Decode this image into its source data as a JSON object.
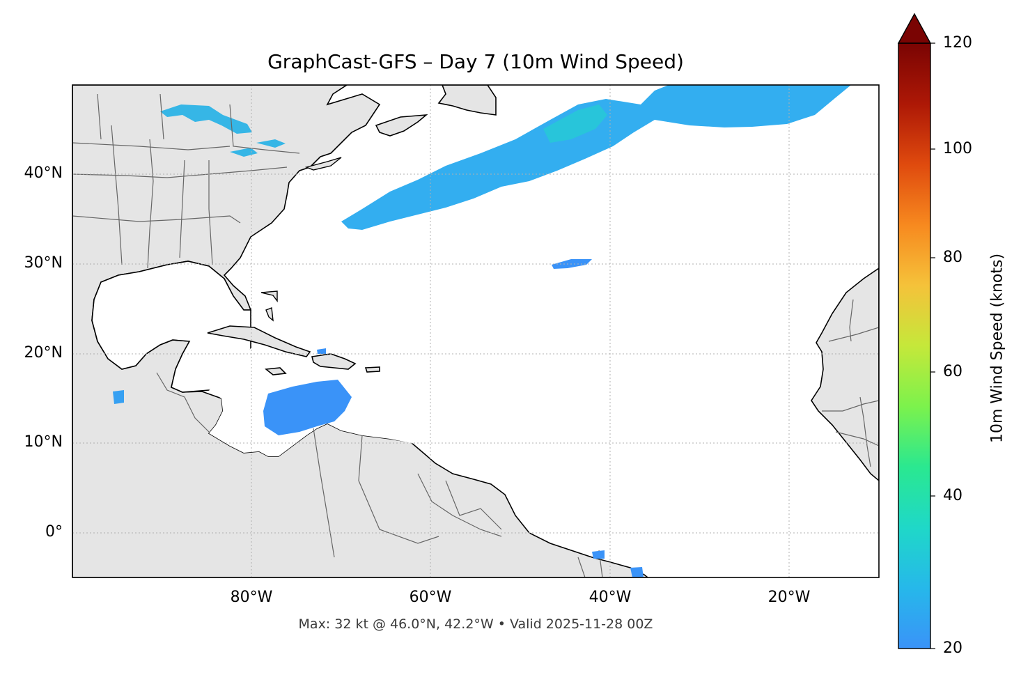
{
  "title": "GraphCast-GFS – Day 7 (10m Wind Speed)",
  "footer": "Max: 32 kt @ 46.0°N, 42.2°W • Valid 2025-11-28 00Z",
  "lat_labels": [
    "40°N",
    "30°N",
    "20°N",
    "10°N",
    "0°"
  ],
  "lon_labels": [
    "80°W",
    "60°W",
    "40°W",
    "20°W"
  ],
  "colorbar": {
    "label": "10m Wind Speed (knots)",
    "ticks": [
      "120",
      "100",
      "80",
      "60",
      "40",
      "20"
    ],
    "units": "knots",
    "range": [
      20,
      120
    ],
    "extend": "max"
  },
  "colors": {
    "land": "#e5e5e5",
    "ocean": "#ffffff",
    "wind_low": "#3a93f8",
    "wind_mid": "#1fd8c8",
    "colormap": [
      "#3a93f8",
      "#1fd8c8",
      "#22e88c",
      "#a4f53a",
      "#dfd93a",
      "#fbb43a",
      "#f2741f",
      "#d1380c",
      "#a31204",
      "#7a0403"
    ]
  },
  "map": {
    "lon_range": [
      -100,
      -10
    ],
    "lat_range": [
      -5,
      50
    ],
    "grid": "dotted",
    "max_wind": {
      "value": 32,
      "lat": 46.0,
      "lon": -42.2
    }
  }
}
